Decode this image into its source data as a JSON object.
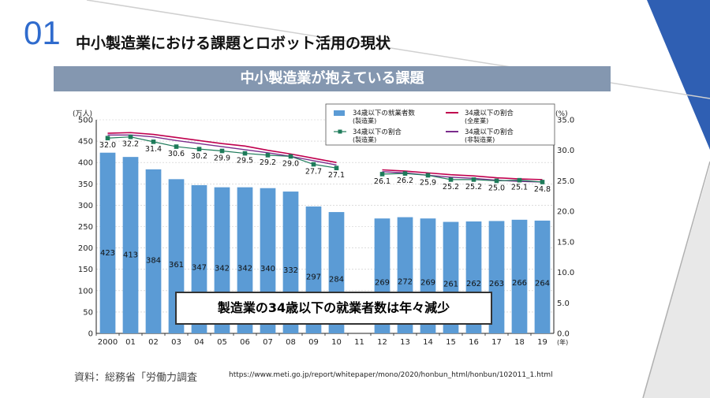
{
  "slide": {
    "number": "01",
    "title": "中小製造業における課題とロボット活用の現状",
    "banner": "中小製造業が抱えている課題",
    "callout": "製造業の34歳以下の就業者数は年々減少",
    "source_label": "資料：総務省「労働力調査",
    "source_url": "https://www.meti.go.jp/report/whitepaper/mono/2020/honbun_html/honbun/102011_1.html"
  },
  "colors": {
    "accent": "#2f6bcd",
    "bar": "#5b9bd5",
    "banner": "#8497b0",
    "line_all": "#c0004e",
    "line_mfg": "#7b2c8c",
    "line_sme": "#1e7b5a"
  },
  "chart_data": {
    "type": "bar",
    "left_unit": "(万人)",
    "right_unit": "(%)",
    "x_unit": "(年)",
    "categories": [
      "2000",
      "01",
      "02",
      "03",
      "04",
      "05",
      "06",
      "07",
      "08",
      "09",
      "10",
      "11",
      "12",
      "13",
      "14",
      "15",
      "16",
      "17",
      "18",
      "19"
    ],
    "y_ticks": [
      "0",
      "50",
      "100",
      "150",
      "200",
      "250",
      "300",
      "350",
      "400",
      "450",
      "500"
    ],
    "y2_ticks": [
      "0.0",
      "5.0",
      "10.0",
      "15.0",
      "20.0",
      "25.0",
      "30.0",
      "35.0"
    ],
    "ylim": [
      0,
      500
    ],
    "y2lim": [
      0,
      35
    ],
    "series": [
      {
        "name": "34歳以下の就業者数（製造業）",
        "kind": "bar",
        "axis": "left",
        "values": [
          423,
          413,
          384,
          361,
          347,
          342,
          342,
          340,
          332,
          297,
          284,
          null,
          269,
          272,
          269,
          261,
          262,
          263,
          266,
          264
        ],
        "labels": [
          "423",
          "413",
          "384",
          "361",
          "347",
          "342",
          "342",
          "340",
          "332",
          "297",
          "284",
          "",
          "269",
          "272",
          "269",
          "261",
          "262",
          "263",
          "266",
          "264"
        ]
      },
      {
        "name": "34歳以下の割合（製造業）",
        "kind": "line",
        "axis": "right",
        "values": [
          32.0,
          32.2,
          31.4,
          30.6,
          30.2,
          29.9,
          29.5,
          29.2,
          29.0,
          27.7,
          27.1,
          null,
          26.1,
          26.2,
          25.9,
          25.2,
          25.2,
          25.0,
          25.1,
          24.8
        ],
        "labels": [
          "32.0",
          "32.2",
          "31.4",
          "30.6",
          "30.2",
          "29.9",
          "29.5",
          "29.2",
          "29.0",
          "27.7",
          "27.1",
          "",
          "26.1",
          "26.2",
          "25.9",
          "25.2",
          "25.2",
          "25.0",
          "25.1",
          "24.8"
        ]
      },
      {
        "name": "34歳以下の割合（全産業）",
        "kind": "line",
        "axis": "right",
        "values": [
          32.8,
          32.9,
          32.6,
          32.1,
          31.6,
          31.1,
          30.7,
          30.0,
          29.4,
          28.7,
          28.0,
          null,
          26.8,
          26.6,
          26.3,
          26.0,
          25.8,
          25.5,
          25.3,
          25.2
        ]
      },
      {
        "name": "34歳以下の割合（非製造業）",
        "kind": "line",
        "axis": "right",
        "values": [
          32.5,
          32.5,
          32.2,
          31.6,
          31.1,
          30.6,
          30.1,
          29.6,
          29.0,
          28.3,
          27.6,
          null,
          26.5,
          26.3,
          25.9,
          25.6,
          25.4,
          25.1,
          24.9,
          24.8
        ]
      }
    ],
    "legend": [
      {
        "label": "34歳以下の就業者数",
        "sub": "(製造業)"
      },
      {
        "label": "34歳以下の割合",
        "sub": "(全産業)"
      },
      {
        "label": "34歳以下の割合",
        "sub": "(製造業)"
      },
      {
        "label": "34歳以下の割合",
        "sub": "(非製造業)"
      }
    ]
  }
}
